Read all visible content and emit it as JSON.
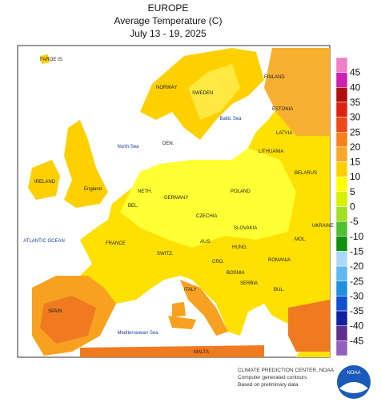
{
  "title": [
    "EUROPE",
    "Average Temperature (C)",
    "July 13 - 19, 2025"
  ],
  "places": [
    "FAROE IS.",
    "FINLAND",
    "NORWAY",
    "SWEDEN",
    "ESTONIA",
    "LATVIA",
    "DEN.",
    "LITHUANIA",
    "BELARUS",
    "IRELAND",
    "England",
    "NETH.",
    "GERMANY",
    "POLAND",
    "BEL.",
    "CZECHIA",
    "UKRAINE",
    "SLOVAKIA",
    "FRANCE",
    "AUS.",
    "MOL.",
    "HUNG.",
    "SWITZ.",
    "ROMANIA",
    "CRO.",
    "BOSNIA",
    "ITALY",
    "SERBIA",
    "BUL.",
    "SPAIN",
    "MALTA"
  ],
  "seas": [
    "North Sea",
    "Baltic Sea",
    "ATLANTIC OCEAN",
    "Mediterranean Sea"
  ],
  "legend": {
    "labels": [
      45,
      40,
      35,
      30,
      25,
      20,
      15,
      10,
      5,
      0,
      -5,
      -10,
      -15,
      -20,
      -25,
      -30,
      -35,
      -40,
      -45
    ]
  },
  "footer": [
    "CLIMATE PREDICTION CENTER, NOAA",
    "Computer generated contours",
    "Based on preliminary data"
  ],
  "logo": "NOAA"
}
